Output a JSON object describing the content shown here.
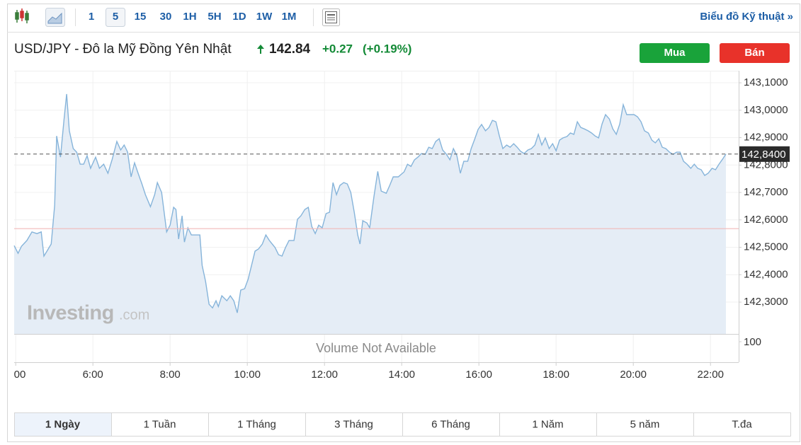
{
  "toolbar": {
    "intervals": [
      "1",
      "5",
      "15",
      "30",
      "1H",
      "5H",
      "1D",
      "1W",
      "1M"
    ],
    "selected_interval_index": 1,
    "link": "Biểu đồ Kỹ thuật »"
  },
  "header": {
    "name": "USD/JPY - Đô la Mỹ Đồng Yên Nhật",
    "price": "142.84",
    "change": "+0.27",
    "change_percent": "(+0.19%)"
  },
  "buttons": {
    "buy": "Mua",
    "sell": "Bán"
  },
  "chart_data": {
    "type": "area",
    "color": "#86b4da",
    "area_color": "#e5edf6",
    "grid": true,
    "x": [
      3.96,
      4.06,
      4.15,
      4.29,
      4.42,
      4.55,
      4.66,
      4.73,
      4.81,
      4.92,
      5.01,
      5.06,
      5.16,
      5.25,
      5.32,
      5.39,
      5.49,
      5.58,
      5.67,
      5.76,
      5.85,
      5.94,
      6.07,
      6.17,
      6.28,
      6.39,
      6.5,
      6.62,
      6.72,
      6.81,
      6.9,
      6.99,
      7.08,
      7.17,
      7.27,
      7.36,
      7.49,
      7.6,
      7.67,
      7.78,
      7.91,
      8.0,
      8.09,
      8.15,
      8.22,
      8.31,
      8.37,
      8.46,
      8.55,
      8.77,
      8.83,
      8.92,
      9.01,
      9.1,
      9.19,
      9.25,
      9.34,
      9.47,
      9.56,
      9.65,
      9.74,
      9.83,
      9.93,
      10.02,
      10.11,
      10.2,
      10.29,
      10.39,
      10.48,
      10.57,
      10.72,
      10.81,
      10.9,
      10.99,
      11.08,
      11.21,
      11.3,
      11.39,
      11.49,
      11.58,
      11.67,
      11.76,
      11.85,
      11.94,
      12.04,
      12.13,
      12.22,
      12.31,
      12.4,
      12.5,
      12.59,
      12.68,
      12.77,
      12.86,
      12.92,
      12.99,
      13.1,
      13.17,
      13.28,
      13.38,
      13.47,
      13.6,
      13.69,
      13.78,
      13.91,
      14.06,
      14.15,
      14.24,
      14.33,
      14.42,
      14.51,
      14.61,
      14.7,
      14.79,
      14.88,
      14.97,
      15.06,
      15.16,
      15.25,
      15.34,
      15.43,
      15.52,
      15.61,
      15.71,
      15.8,
      15.89,
      15.98,
      16.07,
      16.17,
      16.26,
      16.35,
      16.44,
      16.53,
      16.62,
      16.72,
      16.81,
      16.9,
      16.99,
      17.08,
      17.17,
      17.27,
      17.36,
      17.45,
      17.54,
      17.63,
      17.72,
      17.82,
      17.91,
      18.0,
      18.09,
      18.18,
      18.28,
      18.37,
      18.46,
      18.55,
      18.64,
      18.73,
      18.83,
      18.92,
      19.01,
      19.1,
      19.19,
      19.28,
      19.38,
      19.47,
      19.56,
      19.65,
      19.74,
      19.83,
      19.93,
      20.02,
      20.11,
      20.2,
      20.29,
      20.39,
      20.48,
      20.57,
      20.66,
      20.75,
      20.84,
      20.94,
      21.03,
      21.12,
      21.21,
      21.3,
      21.39,
      21.49,
      21.58,
      21.67,
      21.76,
      21.85,
      21.94,
      22.04,
      22.13,
      22.22,
      22.31,
      22.4
    ],
    "values": [
      142.506,
      142.478,
      142.504,
      142.525,
      142.556,
      142.55,
      142.556,
      142.468,
      142.486,
      142.512,
      142.654,
      142.906,
      142.829,
      142.963,
      143.059,
      142.925,
      142.86,
      142.847,
      142.803,
      142.803,
      142.834,
      142.788,
      142.829,
      142.788,
      142.803,
      142.77,
      142.821,
      142.886,
      142.855,
      142.873,
      142.847,
      142.757,
      142.808,
      142.77,
      142.731,
      142.692,
      142.648,
      142.692,
      142.736,
      142.7,
      142.556,
      142.581,
      142.646,
      142.638,
      142.53,
      142.615,
      142.519,
      142.571,
      142.545,
      142.545,
      142.434,
      142.375,
      142.292,
      142.279,
      142.305,
      142.284,
      142.323,
      142.305,
      142.323,
      142.305,
      142.261,
      142.344,
      142.349,
      142.383,
      142.434,
      142.486,
      142.494,
      142.512,
      142.545,
      142.525,
      142.499,
      142.473,
      142.468,
      142.499,
      142.525,
      142.525,
      142.602,
      142.615,
      142.638,
      142.646,
      142.576,
      142.55,
      142.581,
      142.571,
      142.623,
      142.628,
      142.736,
      142.692,
      142.726,
      142.736,
      142.731,
      142.7,
      142.628,
      142.545,
      142.512,
      142.597,
      142.589,
      142.571,
      142.685,
      142.777,
      142.705,
      142.697,
      142.726,
      142.757,
      142.757,
      142.775,
      142.803,
      142.795,
      142.819,
      142.829,
      142.842,
      142.839,
      142.865,
      142.86,
      142.886,
      142.896,
      142.855,
      142.839,
      142.819,
      142.86,
      142.834,
      142.77,
      142.814,
      142.814,
      142.86,
      142.894,
      142.93,
      142.948,
      142.925,
      142.937,
      142.963,
      142.958,
      142.906,
      142.86,
      142.873,
      142.865,
      142.878,
      142.865,
      142.85,
      142.842,
      142.855,
      142.86,
      142.873,
      142.912,
      142.873,
      142.899,
      142.86,
      142.878,
      142.852,
      142.891,
      142.899,
      142.904,
      142.917,
      142.912,
      142.958,
      142.937,
      142.932,
      142.925,
      142.917,
      142.906,
      142.899,
      142.95,
      142.984,
      142.968,
      142.932,
      142.912,
      142.95,
      143.02,
      142.984,
      142.984,
      142.984,
      142.976,
      142.958,
      142.925,
      142.917,
      142.891,
      142.881,
      142.896,
      142.865,
      142.86,
      142.847,
      142.839,
      142.847,
      142.847,
      142.814,
      142.803,
      142.788,
      142.803,
      142.788,
      142.783,
      142.762,
      142.77,
      142.788,
      142.783,
      142.803,
      142.821,
      142.84
    ],
    "xlim": [
      3.96,
      22.73
    ],
    "xticks": [
      {
        "value": 4,
        "label": "00"
      },
      {
        "value": 6,
        "label": "6:00"
      },
      {
        "value": 8,
        "label": "8:00"
      },
      {
        "value": 10,
        "label": "10:00"
      },
      {
        "value": 12,
        "label": "12:00"
      },
      {
        "value": 14,
        "label": "14:00"
      },
      {
        "value": 16,
        "label": "16:00"
      },
      {
        "value": 18,
        "label": "18:00"
      },
      {
        "value": 20,
        "label": "20:00"
      },
      {
        "value": 22,
        "label": "22:00"
      }
    ],
    "ylim": [
      142.184,
      143.144
    ],
    "yticks": [
      {
        "value": 142.3,
        "label": "142,3000"
      },
      {
        "value": 142.4,
        "label": "142,4000"
      },
      {
        "value": 142.5,
        "label": "142,5000"
      },
      {
        "value": 142.6,
        "label": "142,6000"
      },
      {
        "value": 142.7,
        "label": "142,7000"
      },
      {
        "value": 142.8,
        "label": "142,8000"
      },
      {
        "value": 142.9,
        "label": "142,9000"
      },
      {
        "value": 143.0,
        "label": "143,0000"
      },
      {
        "value": 143.1,
        "label": "143,1000"
      }
    ],
    "last_price": {
      "value": 142.84,
      "label": "142,8400"
    },
    "previous_close": 142.568,
    "watermark": [
      "Investing",
      ".com"
    ],
    "volume": {
      "note": "Volume Not Available",
      "ticks": [
        100
      ]
    }
  },
  "range_tabs": {
    "tabs": [
      "1 Ngày",
      "1 Tuần",
      "1 Tháng",
      "3 Tháng",
      "6 Tháng",
      "1 Năm",
      "5 năm",
      "T.đa"
    ],
    "selected_index": 0
  }
}
